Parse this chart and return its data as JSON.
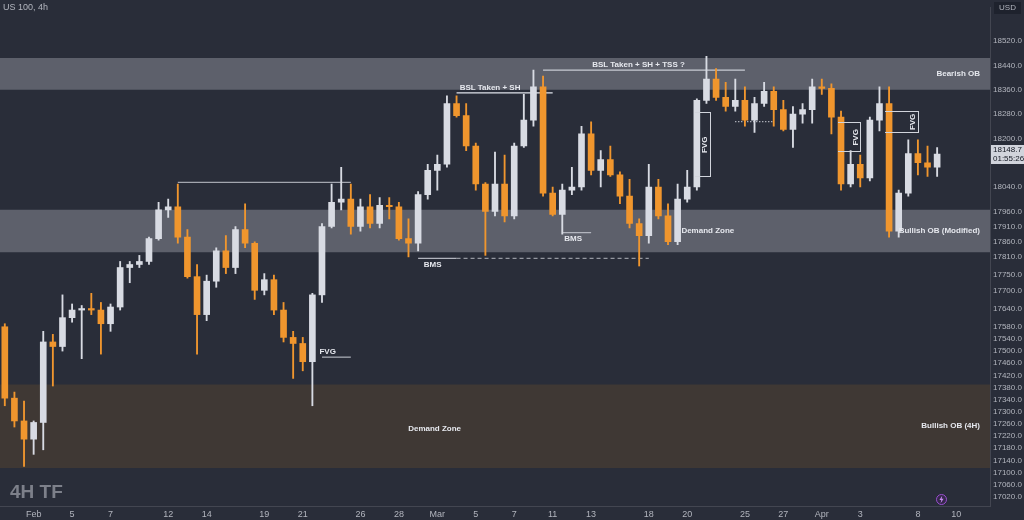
{
  "chart_data": {
    "type": "candlestick",
    "title": "US 100, 4h",
    "subtitle": "4H TF",
    "ylabel": "USD",
    "categories": [
      null,
      null,
      null,
      "Feb",
      null,
      null,
      null,
      "5",
      null,
      null,
      null,
      "7",
      null,
      null,
      null,
      null,
      null,
      "12",
      null,
      null,
      null,
      "14",
      null,
      null,
      null,
      null,
      null,
      "19",
      null,
      null,
      null,
      "21",
      null,
      null,
      null,
      null,
      null,
      "26",
      null,
      null,
      null,
      "28",
      null,
      null,
      null,
      "Mar",
      null,
      null,
      null,
      "5",
      null,
      null,
      null,
      "7",
      null,
      null,
      null,
      "11",
      null,
      null,
      null,
      "13",
      null,
      null,
      null,
      null,
      null,
      "18",
      null,
      null,
      null,
      "20",
      null,
      null,
      null,
      null,
      null,
      "25",
      null,
      null,
      null,
      "27",
      null,
      null,
      null,
      "Apr",
      null,
      null,
      null,
      "3",
      null,
      null,
      null,
      null,
      null,
      "8",
      null,
      null,
      null,
      "10",
      null,
      null,
      null
    ],
    "ohlc": [
      [
        17580,
        17590,
        17320,
        17345
      ],
      [
        17345,
        17365,
        17250,
        17270
      ],
      [
        17270,
        17335,
        17120,
        17210
      ],
      [
        17210,
        17270,
        17160,
        17265
      ],
      [
        17265,
        17565,
        17175,
        17530
      ],
      [
        17530,
        17555,
        17385,
        17515
      ],
      [
        17515,
        17685,
        17500,
        17610
      ],
      [
        17610,
        17655,
        17595,
        17635
      ],
      [
        17635,
        17650,
        17475,
        17640
      ],
      [
        17640,
        17690,
        17620,
        17635
      ],
      [
        17635,
        17660,
        17490,
        17590
      ],
      [
        17590,
        17655,
        17565,
        17645
      ],
      [
        17645,
        17795,
        17635,
        17775
      ],
      [
        17775,
        17795,
        17725,
        17785
      ],
      [
        17785,
        17815,
        17775,
        17795
      ],
      [
        17795,
        17875,
        17785,
        17870
      ],
      [
        17870,
        17990,
        17865,
        17965
      ],
      [
        17965,
        18000,
        17940,
        17975
      ],
      [
        17975,
        18050,
        17855,
        17875
      ],
      [
        17875,
        17900,
        17740,
        17745
      ],
      [
        17745,
        17785,
        17490,
        17620
      ],
      [
        17620,
        17750,
        17600,
        17730
      ],
      [
        17730,
        17840,
        17710,
        17830
      ],
      [
        17830,
        17880,
        17755,
        17775
      ],
      [
        17775,
        17910,
        17755,
        17900
      ],
      [
        17900,
        17985,
        17840,
        17855
      ],
      [
        17855,
        17860,
        17670,
        17700
      ],
      [
        17700,
        17755,
        17685,
        17735
      ],
      [
        17735,
        17750,
        17620,
        17635
      ],
      [
        17635,
        17660,
        17530,
        17545
      ],
      [
        17545,
        17565,
        17410,
        17525
      ],
      [
        17525,
        17545,
        17435,
        17465
      ],
      [
        17465,
        17690,
        17320,
        17685
      ],
      [
        17685,
        17920,
        17660,
        17910
      ],
      [
        17910,
        18050,
        17905,
        17990
      ],
      [
        17990,
        18105,
        17965,
        18000
      ],
      [
        18000,
        18050,
        17885,
        17910
      ],
      [
        17910,
        18000,
        17895,
        17975
      ],
      [
        17975,
        18015,
        17905,
        17920
      ],
      [
        17920,
        18005,
        17905,
        17980
      ],
      [
        17980,
        18005,
        17935,
        17975
      ],
      [
        17975,
        17990,
        17865,
        17870
      ],
      [
        17870,
        17935,
        17810,
        17855
      ],
      [
        17855,
        18025,
        17830,
        18015
      ],
      [
        18015,
        18115,
        18000,
        18095
      ],
      [
        18095,
        18145,
        18030,
        18115
      ],
      [
        18115,
        18340,
        18105,
        18315
      ],
      [
        18315,
        18340,
        18270,
        18275
      ],
      [
        18275,
        18315,
        18160,
        18175
      ],
      [
        18175,
        18185,
        18030,
        18050
      ],
      [
        18050,
        18055,
        17815,
        17960
      ],
      [
        17960,
        18155,
        17945,
        18050
      ],
      [
        18050,
        18145,
        17925,
        17945
      ],
      [
        17945,
        18185,
        17935,
        18175
      ],
      [
        18175,
        18345,
        18170,
        18260
      ],
      [
        18260,
        18425,
        18240,
        18370
      ],
      [
        18370,
        18405,
        18010,
        18020
      ],
      [
        18020,
        18040,
        17945,
        17950
      ],
      [
        17950,
        18050,
        17885,
        18030
      ],
      [
        18030,
        18105,
        18015,
        18040
      ],
      [
        18040,
        18240,
        18030,
        18215
      ],
      [
        18215,
        18255,
        18080,
        18095
      ],
      [
        18095,
        18160,
        18040,
        18130
      ],
      [
        18130,
        18175,
        18075,
        18080
      ],
      [
        18080,
        18090,
        17985,
        18010
      ],
      [
        18010,
        18065,
        17905,
        17920
      ],
      [
        17920,
        17935,
        17780,
        17880
      ],
      [
        17880,
        18115,
        17855,
        18040
      ],
      [
        18040,
        18065,
        17935,
        17945
      ],
      [
        17945,
        17985,
        17850,
        17860
      ],
      [
        17860,
        18050,
        17850,
        18000
      ],
      [
        18000,
        18095,
        17990,
        18040
      ],
      [
        18040,
        18330,
        18030,
        18325
      ],
      [
        18325,
        18470,
        18315,
        18395
      ],
      [
        18395,
        18430,
        18325,
        18335
      ],
      [
        18335,
        18385,
        18290,
        18305
      ],
      [
        18305,
        18395,
        18290,
        18325
      ],
      [
        18325,
        18370,
        18240,
        18260
      ],
      [
        18260,
        18335,
        18220,
        18315
      ],
      [
        18315,
        18385,
        18305,
        18355
      ],
      [
        18355,
        18370,
        18240,
        18295
      ],
      [
        18295,
        18325,
        18225,
        18230
      ],
      [
        18230,
        18305,
        18170,
        18280
      ],
      [
        18280,
        18315,
        18250,
        18295
      ],
      [
        18295,
        18395,
        18250,
        18370
      ],
      [
        18370,
        18395,
        18345,
        18365
      ],
      [
        18365,
        18380,
        18215,
        18270
      ],
      [
        18270,
        18290,
        18030,
        18050
      ],
      [
        18050,
        18160,
        18040,
        18115
      ],
      [
        18115,
        18145,
        18040,
        18070
      ],
      [
        18070,
        18270,
        18060,
        18260
      ],
      [
        18260,
        18370,
        18225,
        18315
      ],
      [
        18315,
        18370,
        17875,
        17895
      ],
      [
        17895,
        18030,
        17875,
        18020
      ],
      [
        18020,
        18195,
        18010,
        18150
      ],
      [
        18150,
        18195,
        18080,
        18120
      ],
      [
        18120,
        18175,
        18075,
        18105
      ],
      [
        18105,
        18170,
        18075,
        18148.7
      ],
      null,
      null,
      null,
      null,
      null
    ],
    "colors": [
      "#f0962e",
      "#f0962e",
      "#f0962e",
      "#d8dbe3",
      "#d8dbe3",
      "#f0962e",
      "#d8dbe3",
      "#d8dbe3",
      "#d8dbe3",
      "#f0962e",
      "#f0962e",
      "#d8dbe3",
      "#d8dbe3",
      "#d8dbe3",
      "#d8dbe3",
      "#d8dbe3",
      "#d8dbe3",
      "#d8dbe3",
      "#f0962e",
      "#f0962e",
      "#f0962e",
      "#d8dbe3",
      "#d8dbe3",
      "#f0962e",
      "#d8dbe3",
      "#f0962e",
      "#f0962e",
      "#d8dbe3",
      "#f0962e",
      "#f0962e",
      "#f0962e",
      "#f0962e",
      "#d8dbe3",
      "#d8dbe3",
      "#d8dbe3",
      "#d8dbe3",
      "#f0962e",
      "#d8dbe3",
      "#f0962e",
      "#d8dbe3",
      "#f0962e",
      "#f0962e",
      "#f0962e",
      "#d8dbe3",
      "#d8dbe3",
      "#d8dbe3",
      "#d8dbe3",
      "#f0962e",
      "#f0962e",
      "#f0962e",
      "#f0962e",
      "#d8dbe3",
      "#f0962e",
      "#d8dbe3",
      "#d8dbe3",
      "#d8dbe3",
      "#f0962e",
      "#f0962e",
      "#d8dbe3",
      "#d8dbe3",
      "#d8dbe3",
      "#f0962e",
      "#d8dbe3",
      "#f0962e",
      "#f0962e",
      "#f0962e",
      "#f0962e",
      "#d8dbe3",
      "#f0962e",
      "#f0962e",
      "#d8dbe3",
      "#d8dbe3",
      "#d8dbe3",
      "#d8dbe3",
      "#f0962e",
      "#f0962e",
      "#d8dbe3",
      "#f0962e",
      "#d8dbe3",
      "#d8dbe3",
      "#f0962e",
      "#f0962e",
      "#d8dbe3",
      "#d8dbe3",
      "#d8dbe3",
      "#f0962e",
      "#f0962e",
      "#f0962e",
      "#d8dbe3",
      "#f0962e",
      "#d8dbe3",
      "#d8dbe3",
      "#f0962e",
      "#d8dbe3",
      "#d8dbe3",
      "#f0962e",
      "#f0962e",
      "#d8dbe3",
      null,
      null,
      null,
      null,
      null
    ],
    "series": [
      {
        "type": "line",
        "color": "#a3a6af",
        "values": [
          null,
          null,
          null,
          null,
          null,
          null,
          null,
          null,
          null,
          null,
          null,
          null,
          null,
          null,
          null,
          null,
          null,
          null,
          18055,
          18055,
          18055,
          18055,
          18055,
          18055,
          18055,
          18055,
          18055,
          18055,
          18055,
          18055,
          18055,
          18055,
          18055,
          18055,
          18055,
          18055,
          18055,
          null,
          null,
          null,
          null,
          null,
          null,
          null,
          null,
          null,
          null,
          null,
          null,
          null,
          null,
          null,
          null,
          null,
          null,
          null,
          null,
          null,
          null,
          null,
          null,
          null,
          null,
          null,
          null,
          null,
          null,
          null,
          null,
          null,
          null,
          null,
          null,
          null,
          null,
          null,
          null,
          null,
          null,
          null,
          null,
          null,
          null,
          null,
          null,
          null,
          null,
          null,
          null,
          null,
          null,
          null,
          null,
          null,
          null,
          null,
          null,
          null,
          null,
          null,
          null,
          null,
          null
        ]
      },
      {
        "type": "line",
        "color": "#e0e3eb",
        "values": [
          null,
          null,
          null,
          null,
          null,
          null,
          null,
          null,
          null,
          null,
          null,
          null,
          null,
          null,
          null,
          null,
          null,
          null,
          null,
          null,
          null,
          null,
          null,
          null,
          null,
          null,
          null,
          null,
          null,
          null,
          null,
          null,
          null,
          null,
          null,
          null,
          null,
          null,
          null,
          null,
          null,
          null,
          null,
          null,
          null,
          null,
          null,
          18350,
          18350,
          18350,
          18350,
          18350,
          18350,
          18350,
          18350,
          18350,
          18350,
          18350,
          null,
          null,
          null,
          null,
          null,
          null,
          null,
          null,
          null,
          null,
          null,
          null,
          null,
          null,
          null,
          null,
          null,
          null,
          null,
          null,
          null,
          null,
          null,
          null,
          null,
          null,
          null,
          null,
          null,
          null,
          null,
          null,
          null,
          null,
          null,
          null,
          null,
          null,
          null,
          null,
          null,
          null,
          null,
          null,
          null
        ]
      },
      {
        "type": "line",
        "color": "#c8cbd3",
        "values": [
          null,
          null,
          null,
          null,
          null,
          null,
          null,
          null,
          null,
          null,
          null,
          null,
          null,
          null,
          null,
          null,
          null,
          null,
          null,
          null,
          null,
          null,
          null,
          null,
          null,
          null,
          null,
          null,
          null,
          null,
          null,
          null,
          null,
          null,
          null,
          null,
          null,
          null,
          null,
          null,
          null,
          null,
          null,
          null,
          null,
          null,
          null,
          null,
          null,
          null,
          null,
          null,
          null,
          null,
          null,
          null,
          18425,
          18425,
          18425,
          18425,
          18425,
          18425,
          18425,
          18425,
          18425,
          18425,
          18425,
          18425,
          18425,
          18425,
          18425,
          18425,
          18425,
          18425,
          18425,
          18425,
          18425,
          18425,
          null,
          null,
          null,
          null,
          null,
          null,
          null,
          null,
          null,
          null,
          null,
          null,
          null,
          null,
          null,
          null,
          null,
          null,
          null,
          null,
          null,
          null,
          null,
          null,
          null
        ]
      },
      {
        "type": "line",
        "color": "#b2b5be",
        "values": [
          null,
          null,
          null,
          null,
          null,
          null,
          null,
          null,
          null,
          null,
          null,
          null,
          null,
          null,
          null,
          null,
          null,
          null,
          null,
          null,
          null,
          null,
          null,
          null,
          null,
          null,
          null,
          null,
          null,
          null,
          null,
          null,
          null,
          null,
          null,
          null,
          null,
          null,
          null,
          null,
          null,
          null,
          null,
          17805,
          17805,
          17805,
          17805,
          17805,
          null,
          null,
          null,
          null,
          null,
          null,
          null,
          null,
          null,
          null,
          null,
          null,
          null,
          null,
          null,
          null,
          null,
          null,
          null,
          null,
          null,
          null,
          null,
          null,
          null,
          null,
          null,
          null,
          null,
          null,
          null,
          null,
          null,
          null,
          null,
          null,
          null,
          null,
          null,
          null,
          null,
          null,
          null,
          null,
          null,
          null,
          null,
          null,
          null,
          null,
          null,
          null,
          null,
          null,
          null
        ]
      },
      {
        "type": "line",
        "color": "#9598a1",
        "line_style": "dashed",
        "values": [
          null,
          null,
          null,
          null,
          null,
          null,
          null,
          null,
          null,
          null,
          null,
          null,
          null,
          null,
          null,
          null,
          null,
          null,
          null,
          null,
          null,
          null,
          null,
          null,
          null,
          null,
          null,
          null,
          null,
          null,
          null,
          null,
          null,
          null,
          null,
          null,
          null,
          null,
          null,
          null,
          null,
          null,
          null,
          null,
          null,
          null,
          null,
          17805,
          17805,
          17805,
          17805,
          17805,
          17805,
          17805,
          17805,
          17805,
          17805,
          17805,
          17805,
          17805,
          17805,
          17805,
          17805,
          17805,
          17805,
          17805,
          17805,
          17805,
          null,
          null,
          null,
          null,
          null,
          null,
          null,
          null,
          null,
          null,
          null,
          null,
          null,
          null,
          null,
          null,
          null,
          null,
          null,
          null,
          null,
          null,
          null,
          null,
          null,
          null,
          null,
          null,
          null,
          null,
          null,
          null,
          null,
          null,
          null
        ]
      },
      {
        "type": "line",
        "color": "#b2b5be",
        "values": [
          null,
          null,
          null,
          null,
          null,
          null,
          null,
          null,
          null,
          null,
          null,
          null,
          null,
          null,
          null,
          null,
          null,
          null,
          null,
          null,
          null,
          null,
          null,
          null,
          null,
          null,
          null,
          null,
          null,
          null,
          null,
          null,
          null,
          null,
          null,
          null,
          null,
          null,
          null,
          null,
          null,
          null,
          null,
          null,
          null,
          null,
          null,
          null,
          null,
          null,
          null,
          null,
          null,
          null,
          null,
          null,
          null,
          null,
          17890,
          17890,
          17890,
          17890,
          null,
          null,
          null,
          null,
          null,
          null,
          null,
          null,
          null,
          null,
          null,
          null,
          null,
          null,
          null,
          null,
          null,
          null,
          null,
          null,
          null,
          null,
          null,
          null,
          null,
          null,
          null,
          null,
          null,
          null,
          null,
          null,
          null,
          null,
          null,
          null,
          null,
          null,
          null,
          null,
          null
        ]
      },
      {
        "type": "line",
        "color": "#b2b5be",
        "values": [
          null,
          null,
          null,
          null,
          null,
          null,
          null,
          null,
          null,
          null,
          null,
          null,
          null,
          null,
          null,
          null,
          null,
          null,
          null,
          null,
          null,
          null,
          null,
          null,
          null,
          null,
          null,
          null,
          null,
          null,
          null,
          null,
          null,
          17480,
          17480,
          17480,
          17480,
          null,
          null,
          null,
          null,
          null,
          null,
          null,
          null,
          null,
          null,
          null,
          null,
          null,
          null,
          null,
          null,
          null,
          null,
          null,
          null,
          null,
          null,
          null,
          null,
          null,
          null,
          null,
          null,
          null,
          null,
          null,
          null,
          null,
          null,
          null,
          null,
          null,
          null,
          null,
          null,
          null,
          null,
          null,
          null,
          null,
          null,
          null,
          null,
          null,
          null,
          null,
          null,
          null,
          null,
          null,
          null,
          null,
          null,
          null,
          null,
          null,
          null,
          null,
          null,
          null,
          null
        ]
      },
      {
        "type": "line",
        "color": "#e0e3eb",
        "line_style": "dotted",
        "values": [
          null,
          null,
          null,
          null,
          null,
          null,
          null,
          null,
          null,
          null,
          null,
          null,
          null,
          null,
          null,
          null,
          null,
          null,
          null,
          null,
          null,
          null,
          null,
          null,
          null,
          null,
          null,
          null,
          null,
          null,
          null,
          null,
          null,
          null,
          null,
          null,
          null,
          null,
          null,
          null,
          null,
          null,
          null,
          null,
          null,
          null,
          null,
          null,
          null,
          null,
          null,
          null,
          null,
          null,
          null,
          null,
          null,
          null,
          null,
          null,
          null,
          null,
          null,
          null,
          null,
          null,
          null,
          null,
          null,
          null,
          null,
          null,
          null,
          null,
          null,
          null,
          18255,
          18255,
          18255,
          18255,
          18255,
          null,
          null,
          null,
          null,
          null,
          null,
          null,
          null,
          null,
          null,
          null,
          null,
          null,
          null,
          null,
          null,
          null,
          null,
          null,
          null,
          null,
          null
        ]
      }
    ],
    "ylim": [
      16990,
      18630
    ],
    "yticks": [
      {
        "value": 18520,
        "label": "18520.0"
      },
      {
        "value": 18440,
        "label": "18440.0"
      },
      {
        "value": 18360,
        "label": "18360.0"
      },
      {
        "value": 18280,
        "label": "18280.0"
      },
      {
        "value": 18200,
        "label": "18200.0"
      },
      {
        "value": 18040,
        "label": "18040.0"
      },
      {
        "value": 17960,
        "label": "17960.0"
      },
      {
        "value": 17910,
        "label": "17910.0"
      },
      {
        "value": 17860,
        "label": "17860.0"
      },
      {
        "value": 17810,
        "label": "17810.0"
      },
      {
        "value": 17750,
        "label": "17750.0"
      },
      {
        "value": 17700,
        "label": "17700.0"
      },
      {
        "value": 17640,
        "label": "17640.0"
      },
      {
        "value": 17580,
        "label": "17580.0"
      },
      {
        "value": 17540,
        "label": "17540.0"
      },
      {
        "value": 17500,
        "label": "17500.0"
      },
      {
        "value": 17460,
        "label": "17460.0"
      },
      {
        "value": 17420,
        "label": "17420.0"
      },
      {
        "value": 17380,
        "label": "17380.0"
      },
      {
        "value": 17340,
        "label": "17340.0"
      },
      {
        "value": 17300,
        "label": "17300.0"
      },
      {
        "value": 17260,
        "label": "17260.0"
      },
      {
        "value": 17220,
        "label": "17220.0"
      },
      {
        "value": 17180,
        "label": "17180.0"
      },
      {
        "value": 17140,
        "label": "17140.0"
      },
      {
        "value": 17100,
        "label": "17100.0"
      },
      {
        "value": 17060,
        "label": "17060.0"
      },
      {
        "value": 17020,
        "label": "17020.0"
      }
    ],
    "bands": [
      {
        "axis": "y",
        "from": 18360,
        "to": 18465,
        "label": "Bearish OB",
        "color": "#5d606b"
      },
      {
        "axis": "y",
        "from": 17825,
        "to": 17965,
        "label": "Bullish OB (Modified)",
        "color": "#5d606b"
      },
      {
        "axis": "y",
        "from": 17115,
        "to": 17390,
        "label": "Bullish OB (4H)",
        "color": "#3f3834"
      }
    ],
    "annotations": [
      "Demand Zone",
      "Demand Zone",
      {
        "text": "BSL Taken + SH",
        "y": 18350
      },
      {
        "text": "BSL Taken + SH + TSS ?",
        "y": 18425
      },
      {
        "text": "BMS",
        "y": 17805
      },
      {
        "text": "BMS",
        "y": 17890
      },
      {
        "text": "FVG",
        "y": 17480
      },
      "FVG",
      "FVG",
      "FVG",
      {
        "text": "18148.7",
        "y": 18148.7
      },
      "01:55:26"
    ]
  }
}
